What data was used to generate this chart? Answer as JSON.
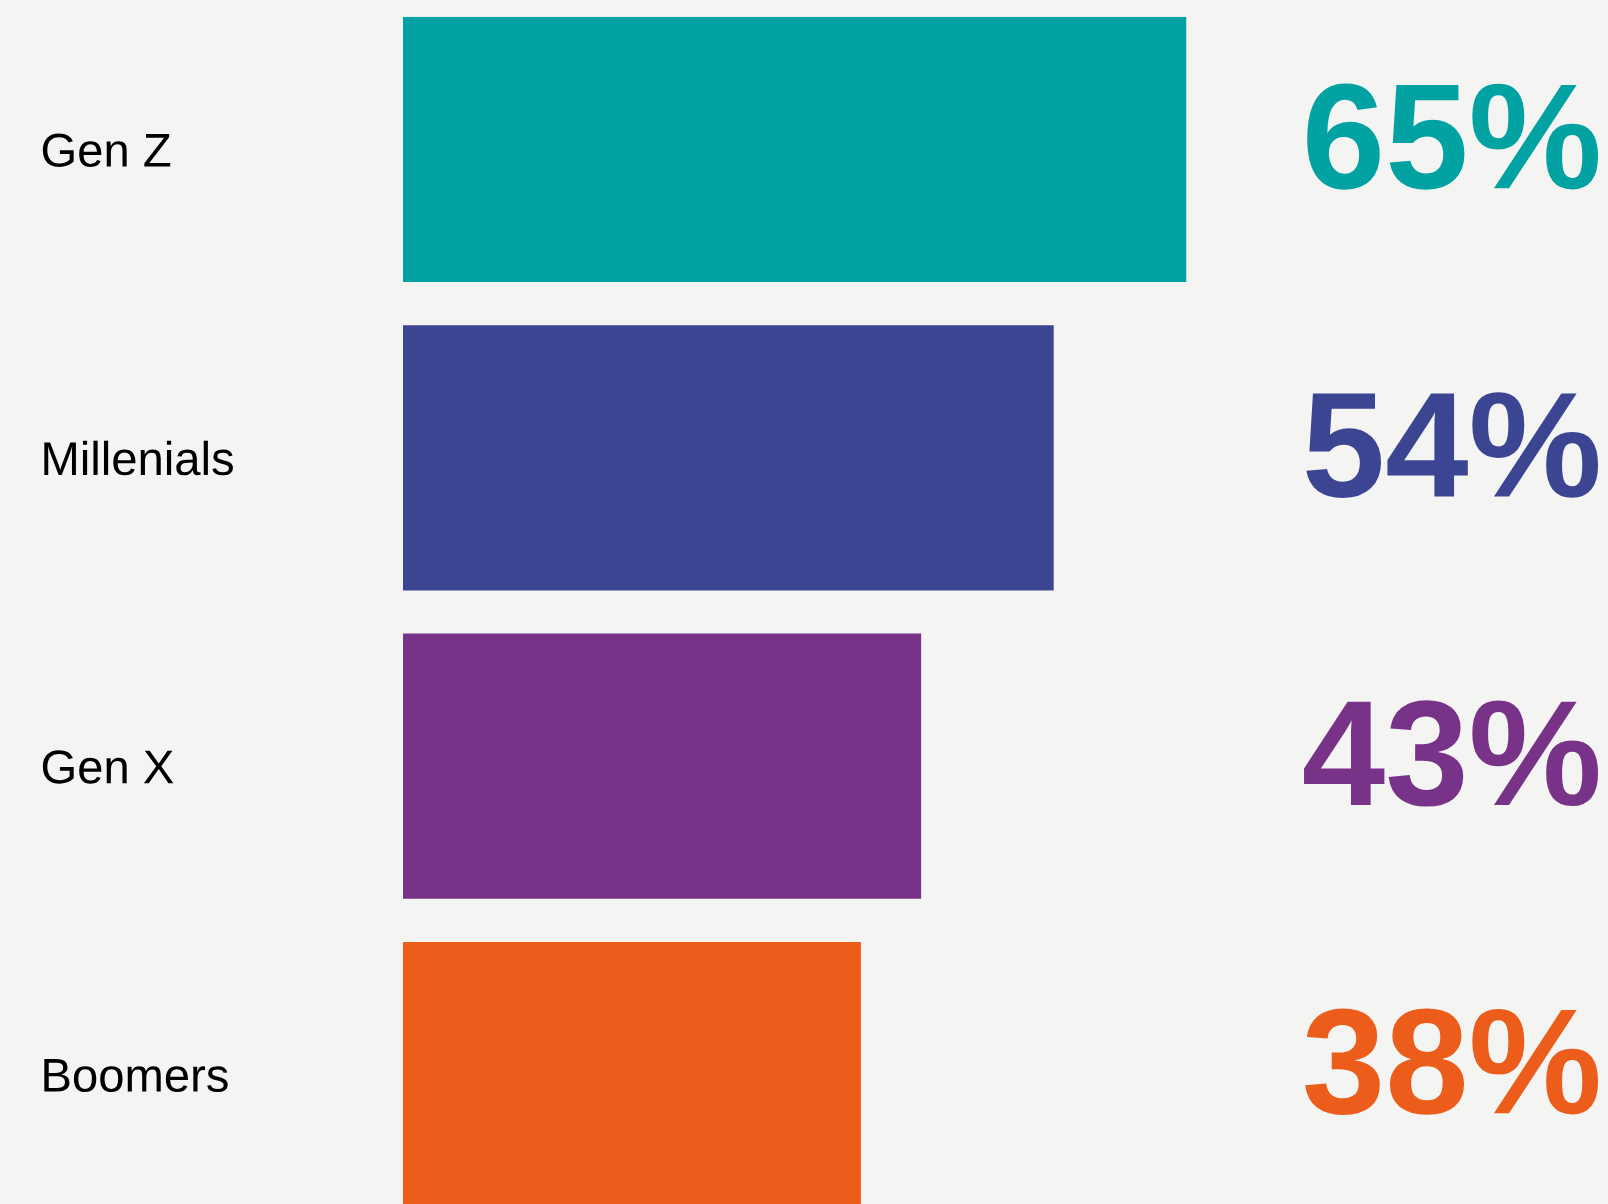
{
  "chart_data": {
    "type": "bar",
    "orientation": "horizontal",
    "categories": [
      "Gen Z",
      "Millenials",
      "Gen X",
      "Boomers"
    ],
    "values": [
      65,
      54,
      43,
      38
    ],
    "colors": [
      "#02a2a2",
      "#3c4592",
      "#783388",
      "#ec5c1b"
    ],
    "value_labels": [
      "65%",
      "54%",
      "43%",
      "38%"
    ],
    "xlim": [
      0,
      100
    ],
    "tick_labels": "y",
    "grid": false,
    "legend": false
  }
}
